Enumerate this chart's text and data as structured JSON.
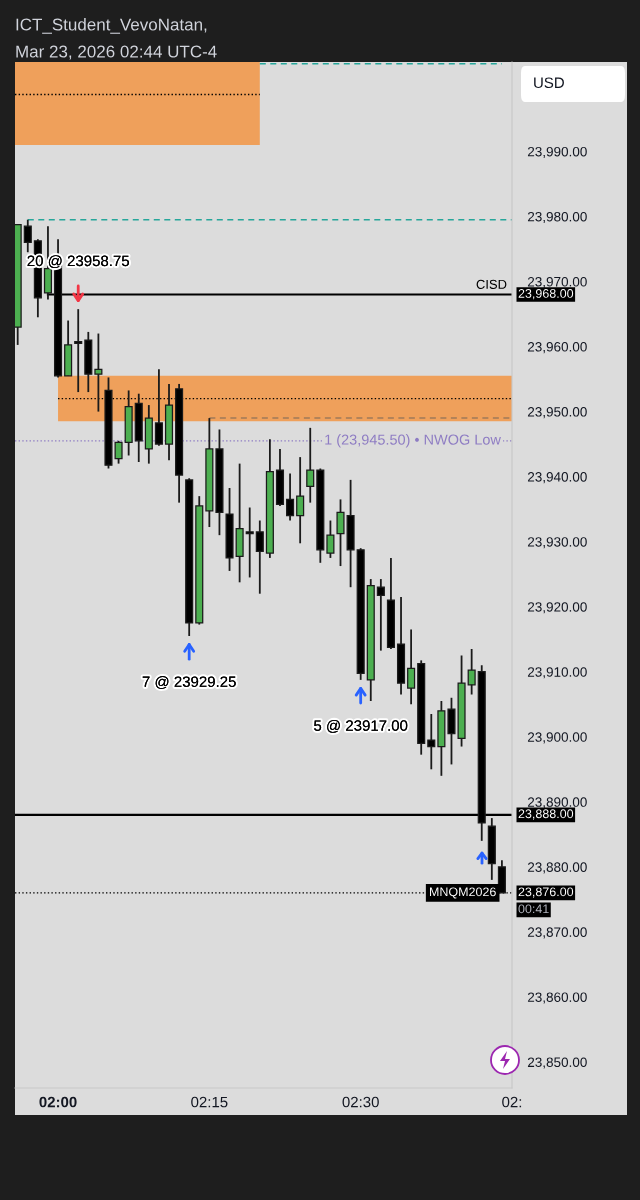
{
  "chart_data": {
    "type": "candlestick",
    "title": "ICT_Student_VevoNatan,",
    "subtitle": "Mar 23, 2026 02:44 UTC-4",
    "ylabel": "USD",
    "x": [
      "2026-03-23T01:56",
      "2026-03-23T01:57",
      "2026-03-23T01:58",
      "2026-03-23T01:59",
      "2026-03-23T02:00",
      "2026-03-23T02:01",
      "2026-03-23T02:02",
      "2026-03-23T02:03",
      "2026-03-23T02:04",
      "2026-03-23T02:05",
      "2026-03-23T02:06",
      "2026-03-23T02:07",
      "2026-03-23T02:08",
      "2026-03-23T02:09",
      "2026-03-23T02:10",
      "2026-03-23T02:11",
      "2026-03-23T02:12",
      "2026-03-23T02:13",
      "2026-03-23T02:14",
      "2026-03-23T02:15",
      "2026-03-23T02:16",
      "2026-03-23T02:17",
      "2026-03-23T02:18",
      "2026-03-23T02:19",
      "2026-03-23T02:20",
      "2026-03-23T02:21",
      "2026-03-23T02:22",
      "2026-03-23T02:23",
      "2026-03-23T02:24",
      "2026-03-23T02:25",
      "2026-03-23T02:26",
      "2026-03-23T02:27",
      "2026-03-23T02:28",
      "2026-03-23T02:29",
      "2026-03-23T02:30",
      "2026-03-23T02:31",
      "2026-03-23T02:32",
      "2026-03-23T02:33",
      "2026-03-23T02:34",
      "2026-03-23T02:35",
      "2026-03-23T02:36",
      "2026-03-23T02:37",
      "2026-03-23T02:38",
      "2026-03-23T02:39",
      "2026-03-23T02:40",
      "2026-03-23T02:41",
      "2026-03-23T02:42",
      "2026-03-23T02:43",
      "2026-03-23T02:44"
    ],
    "ohlc": [
      [
        23963,
        23978.75,
        23960.25,
        23978.75
      ],
      [
        23978.5,
        23979.5,
        23974.5,
        23976
      ],
      [
        23976.25,
        23976.5,
        23964.5,
        23967.5
      ],
      [
        23968.25,
        23978.5,
        23967.25,
        23972
      ],
      [
        23972.5,
        23976.5,
        23955.25,
        23955.5
      ],
      [
        23955.5,
        23964,
        23955.5,
        23960.25
      ],
      [
        23960.75,
        23965.75,
        23953,
        23960.5
      ],
      [
        23961,
        23962.25,
        23953,
        23955.75
      ],
      [
        23955.75,
        23962,
        23950,
        23956.5
      ],
      [
        23953.25,
        23955.25,
        23941.25,
        23941.75
      ],
      [
        23942.75,
        23945.5,
        23942,
        23945.25
      ],
      [
        23945.25,
        23953.25,
        23943.25,
        23950.75
      ],
      [
        23951.25,
        23952.75,
        23942.25,
        23945.5
      ],
      [
        23944.25,
        23951,
        23942,
        23949
      ],
      [
        23948.25,
        23956.5,
        23944.75,
        23945
      ],
      [
        23945,
        23954.25,
        23942.5,
        23951
      ],
      [
        23953.5,
        23954.25,
        23936,
        23940.25
      ],
      [
        23939.5,
        23939.75,
        23915.5,
        23917.5
      ],
      [
        23917.5,
        23937,
        23917.25,
        23935.5
      ],
      [
        23934.75,
        23949,
        23932.25,
        23944.25
      ],
      [
        23944.25,
        23947.25,
        23931,
        23934.5
      ],
      [
        23934.25,
        23938.25,
        23925.5,
        23927.5
      ],
      [
        23927.75,
        23942,
        23923.75,
        23932
      ],
      [
        23931.5,
        23935.25,
        23924.5,
        23931.25
      ],
      [
        23931.5,
        23933.25,
        23922,
        23928.5
      ],
      [
        23928.25,
        23945.75,
        23927.5,
        23940.75
      ],
      [
        23941,
        23944.25,
        23935.5,
        23935.75
      ],
      [
        23936.5,
        23940.5,
        23933.25,
        23934
      ],
      [
        23934,
        23943,
        23929.75,
        23937
      ],
      [
        23938.5,
        23947.5,
        23936,
        23941
      ],
      [
        23941,
        23941.25,
        23926.75,
        23928.75
      ],
      [
        23928.25,
        23933.25,
        23927.5,
        23931
      ],
      [
        23931.25,
        23936.5,
        23926.25,
        23934.5
      ],
      [
        23934,
        23939.5,
        23923,
        23928.75
      ],
      [
        23928.75,
        23929,
        23908.75,
        23909.75
      ],
      [
        23908.75,
        23924.25,
        23905.5,
        23923.25
      ],
      [
        23923,
        23924.25,
        23913.25,
        23921.75
      ],
      [
        23921,
        23927.5,
        23913.5,
        23913.75
      ],
      [
        23914.25,
        23921.5,
        23906.5,
        23908.25
      ],
      [
        23907.5,
        23916.5,
        23905,
        23910.5
      ],
      [
        23911.25,
        23911.75,
        23897.25,
        23899
      ],
      [
        23899.5,
        23903.5,
        23895,
        23898.5
      ],
      [
        23898.5,
        23905.5,
        23894,
        23904
      ],
      [
        23904.25,
        23906,
        23895.75,
        23900.5
      ],
      [
        23899.75,
        23912.5,
        23898.5,
        23908.25
      ],
      [
        23908,
        23913.5,
        23906.5,
        23910.25
      ],
      [
        23910,
        23911,
        23884,
        23886.75
      ],
      [
        23886.25,
        23887.5,
        23878,
        23880.5
      ],
      [
        23880,
        23881,
        23876,
        23876
      ]
    ],
    "colors": [
      "#4caf50",
      "#000000",
      "#000000",
      "#4caf50",
      "#000000",
      "#4caf50",
      "#000000",
      "#000000",
      "#4caf50",
      "#000000",
      "#4caf50",
      "#4caf50",
      "#000000",
      "#4caf50",
      "#000000",
      "#4caf50",
      "#000000",
      "#000000",
      "#4caf50",
      "#4caf50",
      "#000000",
      "#000000",
      "#4caf50",
      "#000000",
      "#000000",
      "#4caf50",
      "#000000",
      "#000000",
      "#4caf50",
      "#4caf50",
      "#000000",
      "#4caf50",
      "#4caf50",
      "#000000",
      "#000000",
      "#4caf50",
      "#000000",
      "#000000",
      "#000000",
      "#4caf50",
      "#000000",
      "#000000",
      "#4caf50",
      "#000000",
      "#4caf50",
      "#4caf50",
      "#000000",
      "#000000",
      "#000000"
    ],
    "series": [
      {
        "type": "line",
        "color": "#000000",
        "line_style": "dotted",
        "x": [
          "2026-03-23T01:55:44",
          "2026-03-23T02:20"
        ],
        "values": [
          23998.75,
          23998.75
        ],
        "lower": [
          23991,
          23991
        ],
        "upper": [
          24003.75,
          24003.75
        ]
      },
      {
        "type": "line",
        "color": "#26a69a",
        "line_style": "dashed",
        "x": [
          "2026-03-23T02:20",
          "2026-03-23T02:44"
        ],
        "values": [
          24003.5,
          24003.5
        ]
      },
      {
        "type": "line",
        "color": "#26a69a",
        "line_style": "dashed",
        "x": [
          "2026-03-23T01:57",
          "2026-03-23T02:45"
        ],
        "values": [
          23979.5,
          23979.5
        ]
      },
      {
        "type": "line",
        "name": "CISD",
        "color": "#000000",
        "line_style": "solid",
        "x": [
          "2026-03-23T01:59",
          "2026-03-23T02:45"
        ],
        "values": [
          23968,
          23968
        ],
        "value_labels": [
          null,
          "23,968.00"
        ]
      },
      {
        "type": "line",
        "color": "#000000",
        "line_style": "dotted",
        "x": [
          "2026-03-23T02:00",
          "2026-03-23T02:45"
        ],
        "values": [
          23952,
          23952
        ],
        "lower": [
          23948.5,
          23948.5
        ],
        "upper": [
          23955.5,
          23955.5
        ]
      },
      {
        "type": "line",
        "color": "#a07a5a",
        "line_style": "dashed",
        "x": [
          "2026-03-23T02:15",
          "2026-03-23T02:45"
        ],
        "values": [
          23949,
          23949
        ]
      },
      {
        "type": "line",
        "color": "#000000",
        "line_style": "solid",
        "x": [
          "2026-03-23T01:55:44",
          "2026-03-23T02:45"
        ],
        "values": [
          23888,
          23888
        ],
        "value_labels": [
          null,
          "23,888.00"
        ]
      },
      {
        "type": "line",
        "name": "MNQM2026",
        "color": "#000000",
        "line_style": "dotted",
        "x": [
          "2026-03-23T01:55:44",
          "2026-03-23T02:45"
        ],
        "values": [
          23876,
          23876
        ],
        "value_labels": [
          null,
          "23,876.00"
        ]
      }
    ],
    "xlim": [
      "2026-03-23T01:55:44",
      "2026-03-23T02:45"
    ],
    "xticks": [
      {
        "value": "2026-03-23T02:00",
        "label": "02:00"
      },
      {
        "value": "2026-03-23T02:15",
        "label": "02:15"
      },
      {
        "value": "2026-03-23T02:30",
        "label": "02:30"
      },
      {
        "value": "2026-03-23T02:45",
        "label": "02:"
      }
    ],
    "ylim": [
      23846,
      24003.75
    ],
    "yticks": [
      {
        "value": 23850,
        "label": "23,850.00"
      },
      {
        "value": 23860,
        "label": "23,860.00"
      },
      {
        "value": 23870,
        "label": "23,870.00"
      },
      {
        "value": 23880,
        "label": "23,880.00"
      },
      {
        "value": 23890,
        "label": "23,890.00"
      },
      {
        "value": 23900,
        "label": "23,900.00"
      },
      {
        "value": 23910,
        "label": "23,910.00"
      },
      {
        "value": 23920,
        "label": "23,920.00"
      },
      {
        "value": 23930,
        "label": "23,930.00"
      },
      {
        "value": 23940,
        "label": "23,940.00"
      },
      {
        "value": 23950,
        "label": "23,950.00"
      },
      {
        "value": 23960,
        "label": "23,960.00"
      },
      {
        "value": 23970,
        "label": "23,970.00"
      },
      {
        "value": 23980,
        "label": "23,980.00"
      },
      {
        "value": 23990,
        "label": "23,990.00"
      }
    ],
    "ref_lines": [
      {
        "axis": "y",
        "value": 23945.5,
        "label": "1 (23,945.50) • NWOG Low",
        "color": "#8e7cc3",
        "line_style": "dotted"
      }
    ],
    "annotations": [
      {
        "text": "20 @ 23958.75",
        "x": "2026-03-23T02:02",
        "y": 23965.75
      },
      {
        "text": "7 @ 23929.25",
        "x": "2026-03-23T02:13",
        "y": 23915.5
      },
      {
        "text": "5 @ 23917.00",
        "x": "2026-03-23T02:30",
        "y": 23908.75
      },
      "00:41"
    ]
  }
}
